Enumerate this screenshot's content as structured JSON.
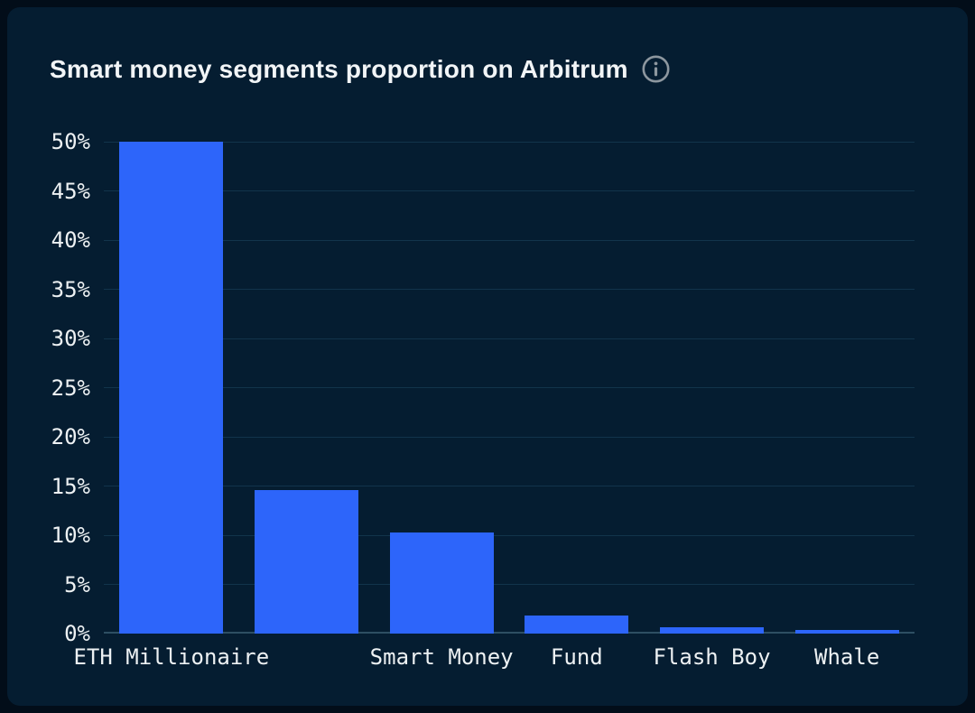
{
  "header": {
    "title": "Smart money segments proportion on Arbitrum"
  },
  "icons": {
    "info": "info-icon"
  },
  "chart_data": {
    "type": "bar",
    "title": "Smart money segments proportion on Arbitrum",
    "categories": [
      "ETH Millionaire",
      "",
      "Smart Money",
      "Fund",
      "Flash Boy",
      "Whale"
    ],
    "values": [
      50,
      14.6,
      10.3,
      1.8,
      0.6,
      0.4
    ],
    "unit": "%",
    "xlabel": "",
    "ylabel": "",
    "ylim": [
      0,
      50
    ],
    "ytick_step": 5,
    "ytick_labels": [
      "0%",
      "5%",
      "10%",
      "15%",
      "20%",
      "25%",
      "30%",
      "35%",
      "40%",
      "45%",
      "50%"
    ],
    "grid": "horizontal",
    "legend": "none"
  },
  "colors": {
    "page_background": "#020D19",
    "card_background": "#051D31",
    "bar": "#2D65FA",
    "gridline": "#12344B",
    "axis_line": "#2E4F63",
    "tick_label": "#EDF1F3",
    "title": "#F2F5F7",
    "info_icon": "#8D979F"
  }
}
